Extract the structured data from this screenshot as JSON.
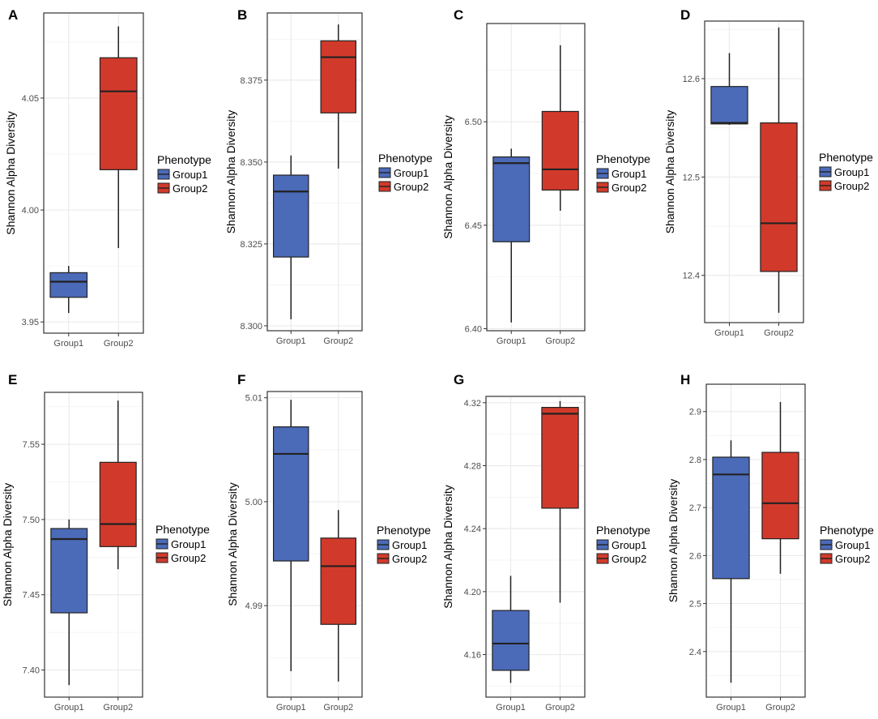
{
  "colors": {
    "group1": "#4B6AB8",
    "group2": "#D13A2B",
    "grid": "#EBEBEB",
    "border": "#333333",
    "median": "#222222"
  },
  "legend": {
    "title": "Phenotype",
    "items": [
      "Group1",
      "Group2"
    ]
  },
  "chart_data": [
    {
      "type": "box",
      "panel_label": "A",
      "ylabel": "Shannon Alpha Diversity",
      "categories": [
        "Group1",
        "Group2"
      ],
      "ylim": [
        3.945,
        4.088
      ],
      "yticks": [
        3.95,
        4.0,
        4.05
      ],
      "ytick_labels": [
        "3.95",
        "4.00",
        "4.05"
      ],
      "series": [
        {
          "name": "Group1",
          "min": 3.954,
          "q1": 3.961,
          "median": 3.968,
          "q3": 3.972,
          "max": 3.975
        },
        {
          "name": "Group2",
          "min": 3.983,
          "q1": 4.018,
          "median": 4.053,
          "q3": 4.068,
          "max": 4.082
        }
      ]
    },
    {
      "type": "box",
      "panel_label": "B",
      "ylabel": "Shannon Alpha Diversity",
      "categories": [
        "Group1",
        "Group2"
      ],
      "ylim": [
        8.2985,
        8.3955
      ],
      "yticks": [
        8.3,
        8.325,
        8.35,
        8.375
      ],
      "ytick_labels": [
        "8.300",
        "8.325",
        "8.350",
        "8.375"
      ],
      "series": [
        {
          "name": "Group1",
          "min": 8.302,
          "q1": 8.321,
          "median": 8.341,
          "q3": 8.346,
          "max": 8.352
        },
        {
          "name": "Group2",
          "min": 8.348,
          "q1": 8.365,
          "median": 8.382,
          "q3": 8.387,
          "max": 8.392
        }
      ]
    },
    {
      "type": "box",
      "panel_label": "C",
      "ylabel": "Shannon Alpha Diversity",
      "categories": [
        "Group1",
        "Group2"
      ],
      "ylim": [
        6.399,
        6.5475
      ],
      "yticks": [
        6.4,
        6.45,
        6.5
      ],
      "ytick_labels": [
        "6.40",
        "6.45",
        "6.50"
      ],
      "series": [
        {
          "name": "Group1",
          "min": 6.403,
          "q1": 6.442,
          "median": 6.48,
          "q3": 6.483,
          "max": 6.487
        },
        {
          "name": "Group2",
          "min": 6.457,
          "q1": 6.467,
          "median": 6.477,
          "q3": 6.505,
          "max": 6.537
        }
      ]
    },
    {
      "type": "box",
      "panel_label": "D",
      "ylabel": "Shannon Alpha Diversity",
      "categories": [
        "Group1",
        "Group2"
      ],
      "ylim": [
        12.352,
        12.6585
      ],
      "yticks": [
        12.4,
        12.5,
        12.6
      ],
      "ytick_labels": [
        "12.4",
        "12.5",
        "12.6"
      ],
      "series": [
        {
          "name": "Group1",
          "min": 12.553,
          "q1": 12.554,
          "median": 12.555,
          "q3": 12.592,
          "max": 12.626
        },
        {
          "name": "Group2",
          "min": 12.362,
          "q1": 12.404,
          "median": 12.453,
          "q3": 12.555,
          "max": 12.652
        }
      ]
    },
    {
      "type": "box",
      "panel_label": "E",
      "ylabel": "Shannon Alpha Diversity",
      "categories": [
        "Group1",
        "Group2"
      ],
      "ylim": [
        7.382,
        7.5845
      ],
      "yticks": [
        7.4,
        7.45,
        7.5,
        7.55
      ],
      "ytick_labels": [
        "7.40",
        "7.45",
        "7.50",
        "7.55"
      ],
      "series": [
        {
          "name": "Group1",
          "min": 7.39,
          "q1": 7.438,
          "median": 7.487,
          "q3": 7.494,
          "max": 7.5
        },
        {
          "name": "Group2",
          "min": 7.467,
          "q1": 7.482,
          "median": 7.497,
          "q3": 7.538,
          "max": 7.579
        }
      ]
    },
    {
      "type": "box",
      "panel_label": "F",
      "ylabel": "Shannon Alpha Diversity",
      "categories": [
        "Group1",
        "Group2"
      ],
      "ylim": [
        4.9812,
        5.0106
      ],
      "yticks": [
        4.99,
        5.0,
        5.01
      ],
      "ytick_labels": [
        "4.99",
        "5.00",
        "5.01"
      ],
      "series": [
        {
          "name": "Group1",
          "min": 4.9837,
          "q1": 4.9943,
          "median": 5.0046,
          "q3": 5.0072,
          "max": 5.0098
        },
        {
          "name": "Group2",
          "min": 4.9827,
          "q1": 4.9882,
          "median": 4.9938,
          "q3": 4.9965,
          "max": 4.9992
        }
      ]
    },
    {
      "type": "box",
      "panel_label": "G",
      "ylabel": "Shannon Alpha Diversity",
      "categories": [
        "Group1",
        "Group2"
      ],
      "ylim": [
        4.133,
        4.324
      ],
      "yticks": [
        4.16,
        4.2,
        4.24,
        4.28,
        4.32
      ],
      "ytick_labels": [
        "4.16",
        "4.20",
        "4.24",
        "4.28",
        "4.32"
      ],
      "series": [
        {
          "name": "Group1",
          "min": 4.142,
          "q1": 4.15,
          "median": 4.167,
          "q3": 4.188,
          "max": 4.21
        },
        {
          "name": "Group2",
          "min": 4.193,
          "q1": 4.253,
          "median": 4.313,
          "q3": 4.317,
          "max": 4.321
        }
      ]
    },
    {
      "type": "box",
      "panel_label": "H",
      "ylabel": "Shannon Alpha Diversity",
      "categories": [
        "Group1",
        "Group2"
      ],
      "ylim": [
        2.305,
        2.957
      ],
      "yticks": [
        2.4,
        2.5,
        2.6,
        2.7,
        2.8,
        2.9
      ],
      "ytick_labels": [
        "2.4",
        "2.5",
        "2.6",
        "2.7",
        "2.8",
        "2.9"
      ],
      "series": [
        {
          "name": "Group1",
          "min": 2.335,
          "q1": 2.552,
          "median": 2.769,
          "q3": 2.805,
          "max": 2.84
        },
        {
          "name": "Group2",
          "min": 2.562,
          "q1": 2.635,
          "median": 2.709,
          "q3": 2.815,
          "max": 2.92
        }
      ]
    }
  ]
}
